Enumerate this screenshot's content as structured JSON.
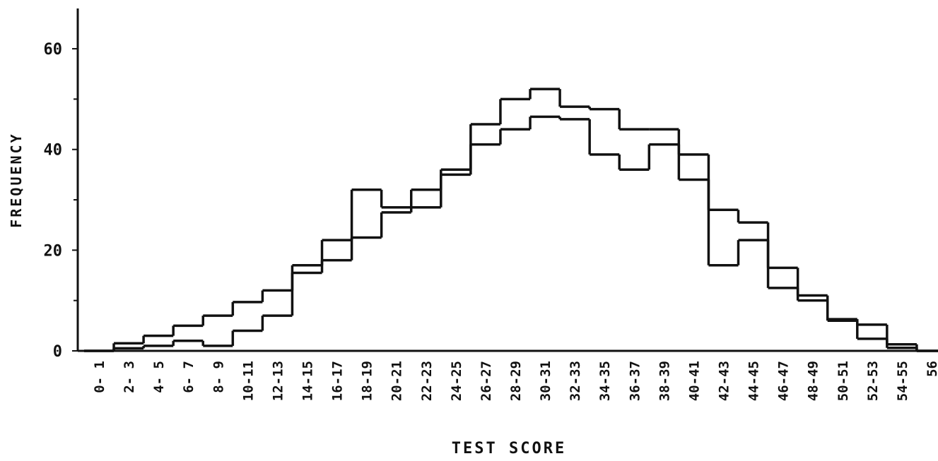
{
  "chart_data": {
    "type": "step",
    "xlabel": "TEST SCORE",
    "ylabel": "FREQUENCY",
    "categories": [
      "0- 1",
      "2- 3",
      "4- 5",
      "6- 7",
      "8- 9",
      "10-11",
      "12-13",
      "14-15",
      "16-17",
      "18-19",
      "20-21",
      "22-23",
      "24-25",
      "26-27",
      "28-29",
      "30-31",
      "32-33",
      "34-35",
      "36-37",
      "38-39",
      "40-41",
      "42-43",
      "44-45",
      "46-47",
      "48-49",
      "50-51",
      "52-53",
      "54-55",
      "56"
    ],
    "series": [
      {
        "color": "#111111",
        "values": [
          0,
          1.5,
          3,
          5,
          7,
          9.7,
          12,
          17,
          22,
          32,
          28.5,
          32,
          36,
          45,
          50,
          52,
          48.5,
          48,
          44,
          44,
          39,
          28,
          25.5,
          16.5,
          11,
          6.3,
          5.2,
          1.3,
          0
        ]
      },
      {
        "color": "#111111",
        "values": [
          0,
          0.5,
          1,
          2,
          1,
          4,
          7,
          15.5,
          18,
          22.5,
          27.5,
          28.5,
          35,
          41,
          44,
          46.5,
          46,
          39,
          36,
          41,
          34,
          17,
          22,
          12.5,
          10,
          6,
          2.4,
          0.6,
          0
        ]
      }
    ],
    "ylim": [
      0,
      68
    ],
    "yticks": [
      0,
      20,
      40,
      60
    ]
  }
}
